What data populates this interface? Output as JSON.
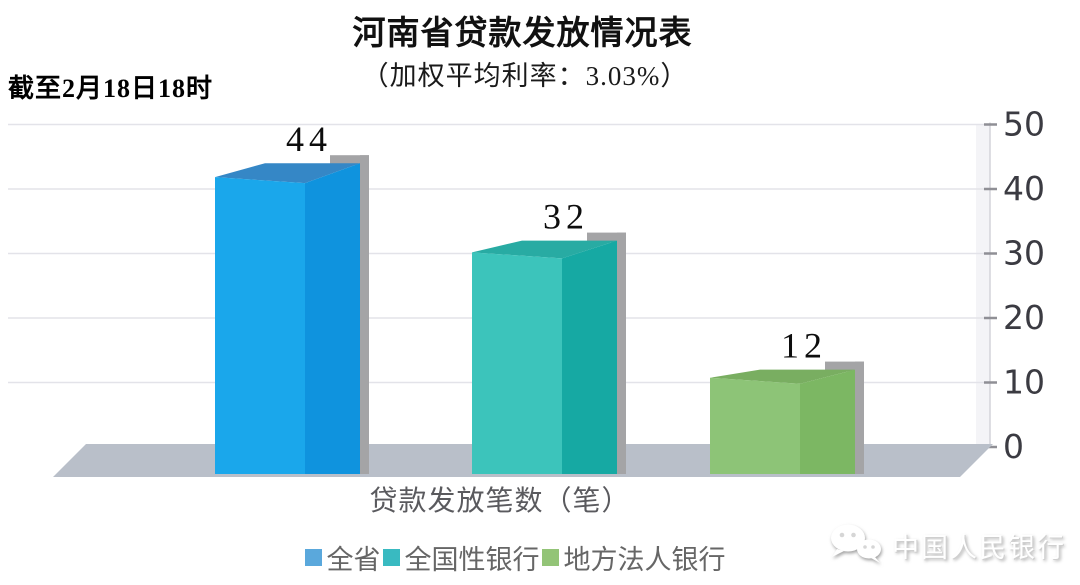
{
  "chart_data": {
    "type": "bar",
    "title": "河南省贷款发放情况表",
    "subtitle": "（加权平均利率：3.03%）",
    "weighted_average_rate": "3.03%",
    "note": "截至2月18日18时",
    "categories": [
      "全省",
      "全国性银行",
      "地方法人银行"
    ],
    "values": [
      44,
      32,
      12
    ],
    "xlabel": "贷款发放笔数（笔）",
    "ylabel": "",
    "ylim": [
      0,
      50
    ],
    "yticks": [
      0,
      10,
      20,
      30,
      40,
      50
    ],
    "grid": true,
    "legend_position": "bottom",
    "effect": "3d",
    "bar_colors": [
      {
        "front": "#1aa7eb",
        "side": "#0f93de",
        "top": "#3587c6"
      },
      {
        "front": "#3cc4bb",
        "side": "#16a9a3",
        "top": "#28aba3"
      },
      {
        "front": "#8dc477",
        "side": "#7cb763",
        "top": "#79ae61"
      }
    ],
    "legend_colors": [
      "#5aa8dc",
      "#39bac1",
      "#93c477"
    ],
    "shadow_color": "#a4a4a6",
    "floor_color": "#b9bfc9",
    "gridline_color": "#e3e3e9",
    "tick_color": "#8f8f95",
    "axis_label_color": "#3b3b42"
  },
  "watermark": {
    "label": "中国人民银行",
    "icon": "wechat-icon"
  }
}
